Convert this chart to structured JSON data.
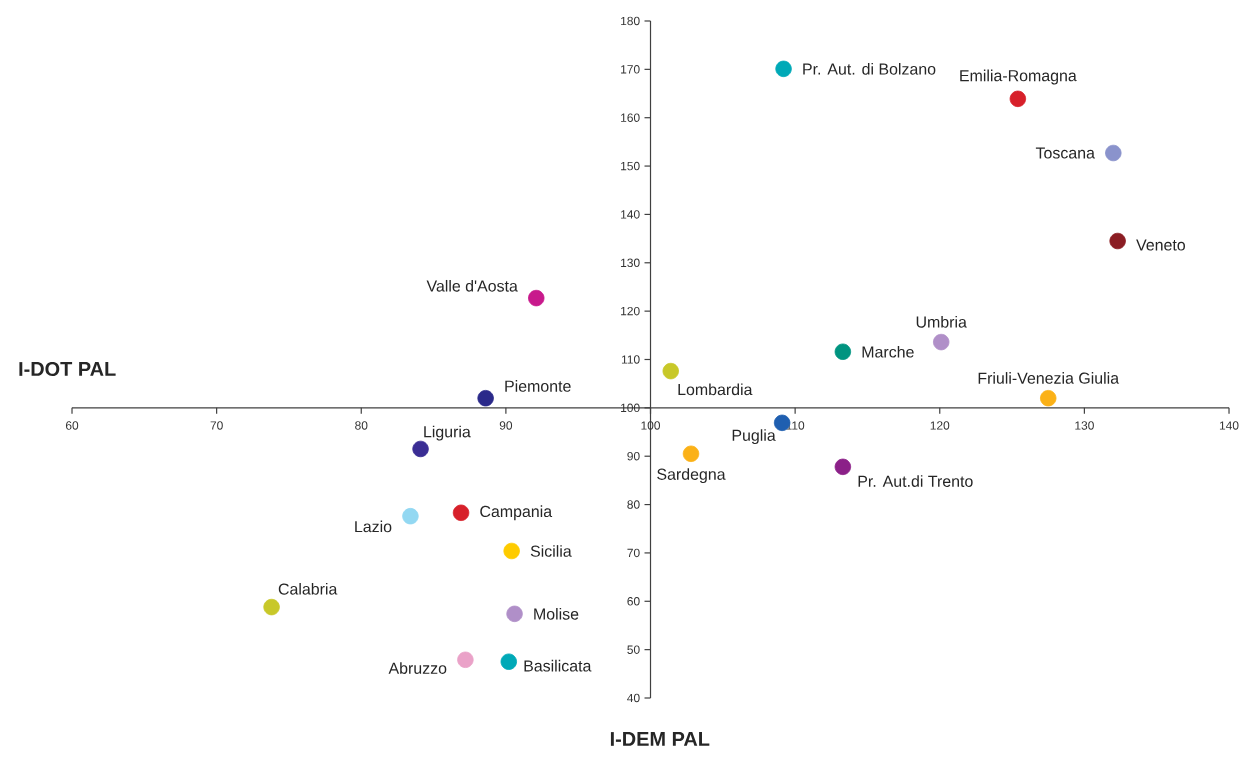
{
  "chart_data": {
    "type": "scatter",
    "xlabel": "I-DEM PAL",
    "ylabel": "I-DOT PAL",
    "xlim": [
      60,
      140
    ],
    "xticks": [
      60,
      70,
      80,
      90,
      100,
      110,
      120,
      130,
      140
    ],
    "ylim": [
      40,
      180
    ],
    "yticks": [
      40,
      50,
      60,
      70,
      80,
      90,
      100,
      110,
      120,
      130,
      140,
      150,
      160,
      170,
      180
    ],
    "series": [
      {
        "name": "Pr. Aut. di Bolzano",
        "color": "#00a9b7",
        "x": [
          109.2
        ],
        "values": [
          170.1
        ]
      },
      {
        "name": "Emilia-Romagna",
        "color": "#d7202a",
        "x": [
          125.4
        ],
        "values": [
          163.9
        ]
      },
      {
        "name": "Toscana",
        "color": "#8a93cc",
        "x": [
          132.0
        ],
        "values": [
          152.7
        ]
      },
      {
        "name": "Veneto",
        "color": "#8b1d23",
        "x": [
          132.3
        ],
        "values": [
          134.5
        ]
      },
      {
        "name": "Valle d'Aosta",
        "color": "#c8198c",
        "x": [
          92.1
        ],
        "values": [
          122.7
        ]
      },
      {
        "name": "Umbria",
        "color": "#b08fc8",
        "x": [
          120.1
        ],
        "values": [
          113.6
        ]
      },
      {
        "name": "Marche",
        "color": "#009480",
        "x": [
          113.3
        ],
        "values": [
          111.6
        ]
      },
      {
        "name": "Lombardia",
        "color": "#c8c829",
        "x": [
          101.4
        ],
        "values": [
          107.6
        ]
      },
      {
        "name": "Piemonte",
        "color": "#2b2a8a",
        "x": [
          88.6
        ],
        "values": [
          102.0
        ]
      },
      {
        "name": "Friuli-Venezia Giulia",
        "color": "#fbb117",
        "x": [
          127.5
        ],
        "values": [
          102.0
        ]
      },
      {
        "name": "Puglia",
        "color": "#1f5fb0",
        "x": [
          109.1
        ],
        "values": [
          96.9
        ]
      },
      {
        "name": "Liguria",
        "color": "#3a2d94",
        "x": [
          84.1
        ],
        "values": [
          91.5
        ]
      },
      {
        "name": "Sardegna",
        "color": "#fbb117",
        "x": [
          102.8
        ],
        "values": [
          90.5
        ]
      },
      {
        "name": "Pr. Aut.di Trento",
        "color": "#8b2088",
        "x": [
          113.3
        ],
        "values": [
          87.8
        ]
      },
      {
        "name": "Lazio",
        "color": "#93d8f2",
        "x": [
          83.4
        ],
        "values": [
          77.6
        ]
      },
      {
        "name": "Campania",
        "color": "#d7202a",
        "x": [
          86.9
        ],
        "values": [
          78.3
        ]
      },
      {
        "name": "Sicilia",
        "color": "#fecb00",
        "x": [
          90.4
        ],
        "values": [
          70.4
        ]
      },
      {
        "name": "Calabria",
        "color": "#c8c829",
        "x": [
          73.8
        ],
        "values": [
          58.8
        ]
      },
      {
        "name": "Molise",
        "color": "#b08fc8",
        "x": [
          90.6
        ],
        "values": [
          57.4
        ]
      },
      {
        "name": "Abruzzo",
        "color": "#eaa2c8",
        "x": [
          87.2
        ],
        "values": [
          47.9
        ]
      },
      {
        "name": "Basilicata",
        "color": "#00a9b7",
        "x": [
          90.2
        ],
        "values": [
          47.5
        ]
      }
    ]
  }
}
